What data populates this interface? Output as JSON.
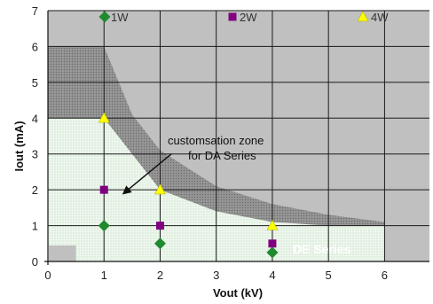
{
  "chart_data": {
    "type": "scatter",
    "xlabel": "Vout (kV)",
    "ylabel": "Iout (mA)",
    "xlim": [
      0,
      6.8
    ],
    "ylim": [
      0,
      7
    ],
    "x_ticks": [
      "0",
      "1",
      "2",
      "3",
      "4",
      "5",
      "6"
    ],
    "y_ticks": [
      "0",
      "1",
      "2",
      "3",
      "4",
      "5",
      "6",
      "7"
    ],
    "grid": true,
    "legend_position": "top",
    "series": [
      {
        "name": "1W",
        "marker": "diamond",
        "color": "#1f8a2e",
        "points": [
          [
            1,
            1
          ],
          [
            2,
            0.5
          ],
          [
            4,
            0.25
          ]
        ]
      },
      {
        "name": "2W",
        "marker": "square",
        "color": "#800080",
        "points": [
          [
            1,
            2
          ],
          [
            2,
            1
          ],
          [
            4,
            0.5
          ]
        ]
      },
      {
        "name": "4W",
        "marker": "triangle",
        "color": "#ffff00",
        "points": [
          [
            1,
            4
          ],
          [
            2,
            2
          ],
          [
            4,
            1
          ]
        ]
      }
    ],
    "regions": {
      "de_series": {
        "label": "DE Series",
        "boundary": [
          [
            0,
            6
          ],
          [
            1,
            6
          ],
          [
            1.5,
            4.1
          ],
          [
            2,
            3.1
          ],
          [
            3,
            2.1
          ],
          [
            4,
            1.6
          ],
          [
            5,
            1.3
          ],
          [
            6,
            1.1
          ]
        ]
      },
      "customisation_zone": {
        "boundary": [
          [
            0,
            4
          ],
          [
            1,
            4
          ],
          [
            2,
            2
          ],
          [
            3,
            1.4
          ],
          [
            4,
            1.1
          ],
          [
            5,
            1
          ],
          [
            6,
            1
          ]
        ]
      }
    },
    "annotation": {
      "lines": [
        "customsation zone",
        "for DA Series"
      ],
      "arrow_from": [
        2.2,
        3.0
      ],
      "arrow_to": [
        1.35,
        1.9
      ]
    },
    "colors": {
      "plot_background": "#c0c0c0",
      "de_series_fill": "#8c8c8c",
      "customisation_fill": "#e4f1e4"
    }
  }
}
